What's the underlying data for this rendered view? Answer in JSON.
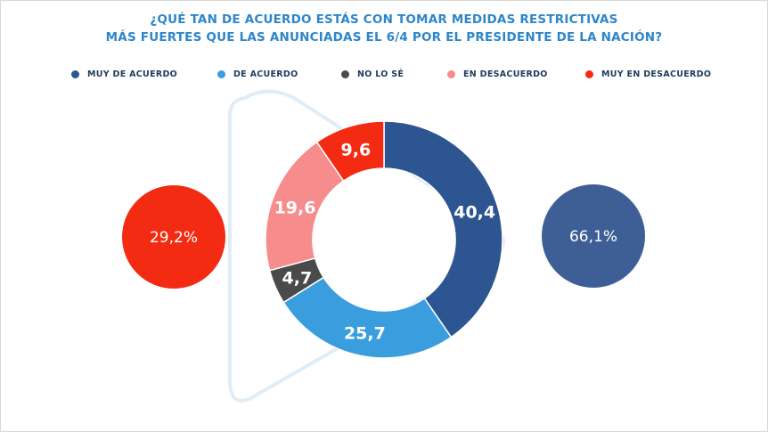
{
  "title": {
    "line1": "¿QUÉ TAN DE ACUERDO ESTÁS CON TOMAR MEDIDAS RESTRICTIVAS",
    "line2": "MÁS FUERTES QUE LAS ANUNCIADAS EL 6/4 POR EL PRESIDENTE DE LA NACIÓN?"
  },
  "colors": {
    "title": "#2e86c9",
    "muy_de_acuerdo": "#2d5592",
    "de_acuerdo": "#3a9ede",
    "no_lo_se": "#4a4a4a",
    "en_desacuerdo": "#f68c8c",
    "muy_en_desacuerdo": "#f32b13",
    "bubble_left": "#f32b13",
    "bubble_right": "#3e5f95"
  },
  "chart_data": {
    "type": "pie",
    "donut": true,
    "title": "¿QUÉ TAN DE ACUERDO ESTÁS CON TOMAR MEDIDAS RESTRICTIVAS MÁS FUERTES QUE LAS ANUNCIADAS EL 6/4 POR EL PRESIDENTE DE LA NACIÓN?",
    "legend_position": "top",
    "slices": [
      {
        "key": "muy_de_acuerdo",
        "name": "MUY DE ACUERDO",
        "value": 40.4,
        "label": "40,4",
        "color": "#2d5592"
      },
      {
        "key": "de_acuerdo",
        "name": "DE ACUERDO",
        "value": 25.7,
        "label": "25,7",
        "color": "#3a9ede"
      },
      {
        "key": "no_lo_se",
        "name": "NO LO SÉ",
        "value": 4.7,
        "label": "4,7",
        "color": "#4a4a4a"
      },
      {
        "key": "en_desacuerdo",
        "name": "EN DESACUERDO",
        "value": 19.6,
        "label": "19,6",
        "color": "#f68c8c"
      },
      {
        "key": "muy_en_desacuerdo",
        "name": "MUY EN DESACUERDO",
        "value": 9.6,
        "label": "9,6",
        "color": "#f32b13"
      }
    ],
    "totals": {
      "desacuerdo_total": {
        "value": 29.2,
        "label": "29,2%"
      },
      "acuerdo_total": {
        "value": 66.1,
        "label": "66,1%"
      }
    }
  }
}
